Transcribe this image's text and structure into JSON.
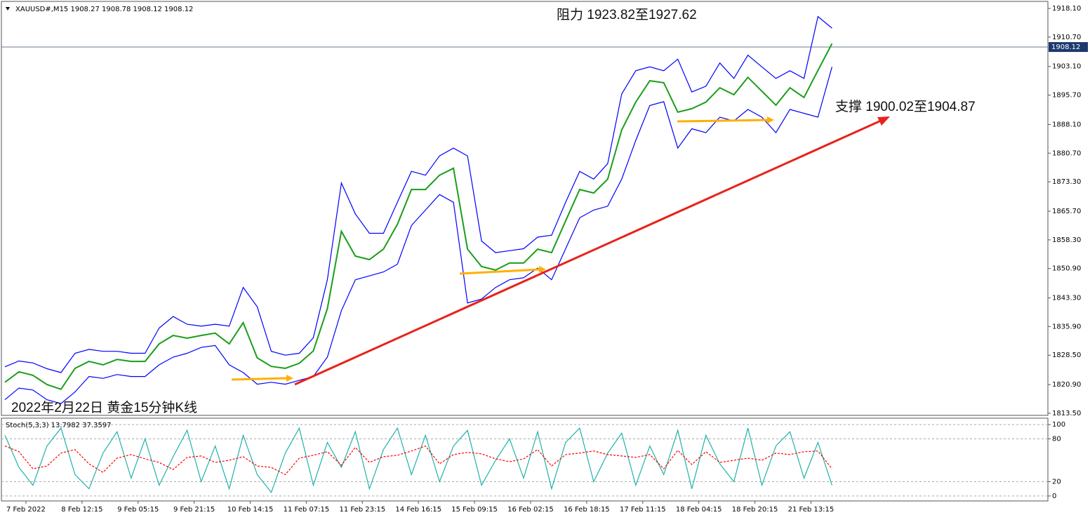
{
  "chart_data": [
    {
      "type": "line",
      "title": "XAUUSD#,M15  1908.27 1908.78 1908.12 1908.12",
      "annotations": [
        "阻力 1923.82至1927.62",
        "支撑 1900.02至1904.87",
        "2022年2月22日 黄金15分钟K线"
      ],
      "x": [
        0,
        1,
        2,
        3,
        4,
        5,
        6,
        7,
        8,
        9,
        10,
        11,
        12,
        13,
        14,
        15,
        16,
        17,
        18,
        19,
        20,
        21,
        22,
        23,
        24,
        25,
        26,
        27,
        28,
        29,
        30,
        31,
        32,
        33,
        34,
        35,
        36,
        37,
        38,
        39,
        40,
        41,
        42,
        43,
        44,
        45,
        46,
        47,
        48,
        49,
        50,
        51,
        52,
        53,
        54,
        55,
        56,
        57,
        58,
        59
      ],
      "xlim": [
        -0.25,
        74.4
      ],
      "ylim": [
        1812.95,
        1919.55
      ],
      "yticks": [
        {
          "value": 1918.1,
          "label": "1918.10"
        },
        {
          "value": 1910.7,
          "label": "1910.70"
        },
        {
          "value": 1903.1,
          "label": "1903.10"
        },
        {
          "value": 1895.7,
          "label": "1895.70"
        },
        {
          "value": 1888.1,
          "label": "1888.10"
        },
        {
          "value": 1880.7,
          "label": "1880.70"
        },
        {
          "value": 1873.3,
          "label": "1873.30"
        },
        {
          "value": 1865.7,
          "label": "1865.70"
        },
        {
          "value": 1858.3,
          "label": "1858.30"
        },
        {
          "value": 1850.9,
          "label": "1850.90"
        },
        {
          "value": 1843.3,
          "label": "1843.30"
        },
        {
          "value": 1835.9,
          "label": "1835.90"
        },
        {
          "value": 1828.5,
          "label": "1828.50"
        },
        {
          "value": 1820.9,
          "label": "1820.90"
        },
        {
          "value": 1813.5,
          "label": "1813.50"
        }
      ],
      "current_price": 1908.12,
      "series": [
        {
          "color": "#0000ff",
          "values": [
            1825.5,
            1827.0,
            1826.5,
            1825.0,
            1824.0,
            1829.0,
            1830.0,
            1829.5,
            1829.5,
            1829.0,
            1829.0,
            1835.5,
            1838.5,
            1836.5,
            1836.0,
            1836.5,
            1836.0,
            1846.0,
            1841.0,
            1829.5,
            1828.5,
            1829.0,
            1833.0,
            1848.0,
            1873.0,
            1865.0,
            1860.0,
            1860.0,
            1868.0,
            1876.0,
            1875.0,
            1880.0,
            1882.0,
            1880.0,
            1858.0,
            1855.0,
            1855.5,
            1856.0,
            1859.0,
            1859.5,
            1868.0,
            1876.0,
            1874.0,
            1878.0,
            1896.0,
            1902.0,
            1903.0,
            1902.0,
            1905.0,
            1896.5,
            1898.0,
            1904.0,
            1900.0,
            1906.0,
            1903.0,
            1900.0,
            1902.0,
            1900.0,
            1916.0,
            1913.0
          ]
        },
        {
          "color": "#0000ff",
          "values": [
            1817.0,
            1820.0,
            1819.5,
            1817.0,
            1816.0,
            1819.0,
            1823.0,
            1822.5,
            1823.5,
            1823.0,
            1823.0,
            1826.0,
            1828.0,
            1829.0,
            1830.5,
            1831.0,
            1826.0,
            1824.0,
            1821.0,
            1821.5,
            1821.0,
            1822.0,
            1823.0,
            1828.0,
            1840.0,
            1848.0,
            1849.0,
            1850.0,
            1852.0,
            1862.0,
            1866.0,
            1870.0,
            1868.0,
            1842.0,
            1843.0,
            1846.0,
            1848.0,
            1848.5,
            1851.0,
            1848.0,
            1856.0,
            1864.0,
            1866.0,
            1867.0,
            1874.0,
            1884.0,
            1893.0,
            1894.0,
            1882.0,
            1887.0,
            1886.0,
            1890.0,
            1889.0,
            1892.0,
            1890.0,
            1886.0,
            1892.0,
            1891.0,
            1890.0,
            1903.0
          ]
        },
        {
          "color": "#1a9e1a",
          "values": [
            1821.5,
            1824.2,
            1823.3,
            1820.9,
            1819.7,
            1825.1,
            1826.9,
            1826.0,
            1827.4,
            1826.9,
            1826.9,
            1831.4,
            1833.6,
            1832.9,
            1833.6,
            1834.2,
            1831.4,
            1836.9,
            1827.8,
            1825.6,
            1825.1,
            1826.4,
            1829.6,
            1840.5,
            1860.5,
            1854.1,
            1853.2,
            1855.9,
            1862.3,
            1871.3,
            1871.3,
            1875.0,
            1876.8,
            1855.9,
            1851.4,
            1850.5,
            1852.3,
            1852.3,
            1855.9,
            1855.0,
            1863.2,
            1871.3,
            1870.4,
            1874.0,
            1886.7,
            1893.9,
            1899.4,
            1898.9,
            1891.3,
            1892.2,
            1893.9,
            1897.6,
            1895.8,
            1900.3,
            1896.7,
            1893.1,
            1897.6,
            1895.1,
            1902.1,
            1909.0
          ]
        }
      ]
    },
    {
      "type": "line",
      "title": "Stoch(5,3,3) 13.7982 37.3597",
      "x": [
        0,
        1,
        2,
        3,
        4,
        5,
        6,
        7,
        8,
        9,
        10,
        11,
        12,
        13,
        14,
        15,
        16,
        17,
        18,
        19,
        20,
        21,
        22,
        23,
        24,
        25,
        26,
        27,
        28,
        29,
        30,
        31,
        32,
        33,
        34,
        35,
        36,
        37,
        38,
        39,
        40,
        41,
        42,
        43,
        44,
        45,
        46,
        47,
        48,
        49,
        50,
        51,
        52,
        53,
        54,
        55,
        56,
        57,
        58,
        59
      ],
      "xlim": [
        -0.25,
        74.4
      ],
      "xticks": [
        {
          "value": 1.5,
          "label": "7 Feb 2022"
        },
        {
          "value": 5.5,
          "label": "8 Feb 12:15"
        },
        {
          "value": 9.5,
          "label": "9 Feb 05:15"
        },
        {
          "value": 13.5,
          "label": "9 Feb 21:15"
        },
        {
          "value": 17.5,
          "label": "10 Feb 14:15"
        },
        {
          "value": 21.5,
          "label": "11 Feb 07:15"
        },
        {
          "value": 25.5,
          "label": "11 Feb 23:15"
        },
        {
          "value": 29.5,
          "label": "14 Feb 16:15"
        },
        {
          "value": 33.5,
          "label": "15 Feb 09:15"
        },
        {
          "value": 37.5,
          "label": "16 Feb 02:15"
        },
        {
          "value": 41.5,
          "label": "16 Feb 18:15"
        },
        {
          "value": 45.5,
          "label": "17 Feb 11:15"
        },
        {
          "value": 49.5,
          "label": "18 Feb 04:15"
        },
        {
          "value": 53.5,
          "label": "18 Feb 20:15"
        },
        {
          "value": 57.5,
          "label": "21 Feb 13:15"
        }
      ],
      "ylim": [
        -6,
        108
      ],
      "yticks": [
        100,
        80,
        20,
        0
      ],
      "grid": true,
      "series": [
        {
          "color": "#20b2aa",
          "values": [
            85,
            40,
            15,
            70,
            95,
            30,
            10,
            60,
            90,
            25,
            80,
            15,
            55,
            92,
            20,
            70,
            10,
            85,
            30,
            5,
            60,
            95,
            15,
            75,
            40,
            90,
            10,
            65,
            95,
            30,
            85,
            20,
            70,
            92,
            15,
            50,
            80,
            25,
            90,
            10,
            75,
            95,
            20,
            60,
            88,
            15,
            70,
            30,
            92,
            10,
            85,
            45,
            20,
            95,
            15,
            70,
            90,
            25,
            75,
            15
          ]
        },
        {
          "color": "#ff0000",
          "values": [
            70,
            62,
            38,
            42,
            60,
            65,
            45,
            33,
            53,
            58,
            52,
            47,
            37,
            54,
            56,
            47,
            50,
            55,
            42,
            40,
            30,
            53,
            57,
            62,
            43,
            68,
            47,
            55,
            57,
            63,
            70,
            45,
            58,
            61,
            59,
            52,
            48,
            52,
            65,
            42,
            58,
            60,
            63,
            58,
            56,
            54,
            58,
            38,
            64,
            44,
            62,
            47,
            50,
            53,
            50,
            60,
            58,
            62,
            63,
            38
          ]
        }
      ]
    }
  ]
}
